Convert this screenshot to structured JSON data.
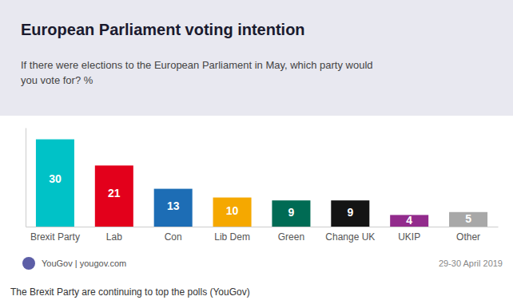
{
  "chart_data": {
    "type": "bar",
    "title": "European Parliament voting intention",
    "subtitle": "If there were elections to the European Parliament in May, which party would\nyou vote for? %",
    "categories": [
      "Brexit Party",
      "Lab",
      "Con",
      "Lib Dem",
      "Green",
      "Change UK",
      "UKIP",
      "Other"
    ],
    "values": [
      30,
      21,
      13,
      10,
      9,
      9,
      4,
      5
    ],
    "colors": [
      "#00C2C7",
      "#E3001B",
      "#1D6DB5",
      "#F5A800",
      "#006B54",
      "#141414",
      "#922B8C",
      "#A8A8A8"
    ],
    "ylim": [
      0,
      34
    ],
    "data_labels": true,
    "tick_labels": "x",
    "annotations": [
      "YouGov | yougov.com",
      "29-30 April 2019",
      "The Brexit Party are continuing to top the polls (YouGov)"
    ]
  }
}
